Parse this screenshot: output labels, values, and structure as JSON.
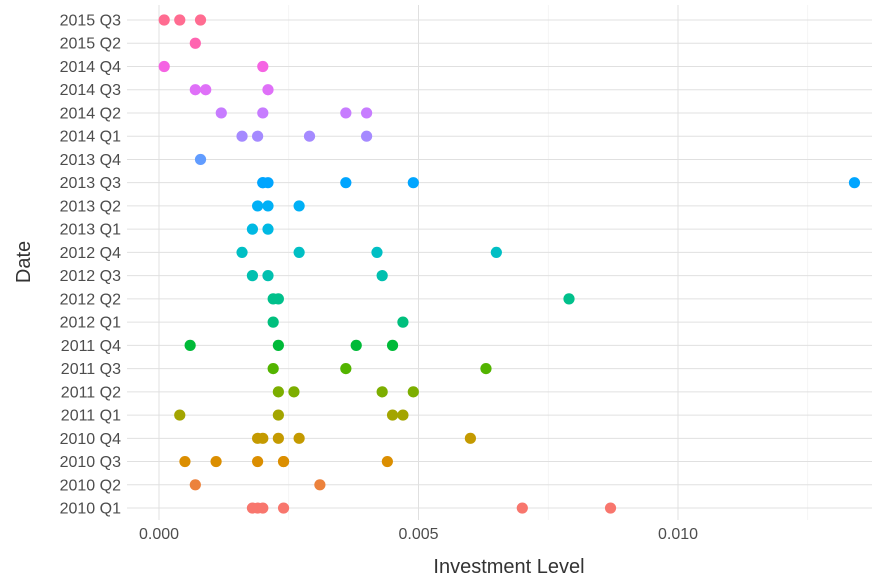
{
  "chart_data": {
    "type": "scatter",
    "title": "",
    "xlabel": "Investment Level",
    "ylabel": "Date",
    "xlim": [
      -0.0003,
      0.0138
    ],
    "x_ticks": [
      0,
      0.005,
      0.01
    ],
    "x_tick_labels": [
      "0.000",
      "0.005",
      "0.010"
    ],
    "grid": true,
    "legend": "none",
    "categories": [
      "2010 Q1",
      "2010 Q2",
      "2010 Q3",
      "2010 Q4",
      "2011 Q1",
      "2011 Q2",
      "2011 Q3",
      "2011 Q4",
      "2012 Q1",
      "2012 Q2",
      "2012 Q3",
      "2012 Q4",
      "2013 Q1",
      "2013 Q2",
      "2013 Q3",
      "2013 Q4",
      "2014 Q1",
      "2014 Q2",
      "2014 Q3",
      "2014 Q4",
      "2015 Q2",
      "2015 Q3"
    ],
    "colors": [
      "#F8766D",
      "#EC823C",
      "#DB8E00",
      "#C49A00",
      "#A3A500",
      "#7CAE00",
      "#53B400",
      "#00BA38",
      "#00BF7D",
      "#00C08B",
      "#00C0AF",
      "#00BFC4",
      "#00B9E3",
      "#00B0F6",
      "#00A5FF",
      "#619CFF",
      "#A58AFF",
      "#C77CFF",
      "#DF70F8",
      "#F564E3",
      "#FF64B0",
      "#FF6C91"
    ],
    "points": [
      {
        "category": "2010 Q1",
        "values": [
          0.0018,
          0.0019,
          0.002,
          0.0024,
          0.007,
          0.0087
        ]
      },
      {
        "category": "2010 Q2",
        "values": [
          0.0007,
          0.0031
        ]
      },
      {
        "category": "2010 Q3",
        "values": [
          0.0005,
          0.0011,
          0.0019,
          0.0024,
          0.0024,
          0.0044
        ]
      },
      {
        "category": "2010 Q4",
        "values": [
          0.0019,
          0.002,
          0.0023,
          0.0027,
          0.006
        ]
      },
      {
        "category": "2011 Q1",
        "values": [
          0.0004,
          0.0023,
          0.0045,
          0.0047
        ]
      },
      {
        "category": "2011 Q2",
        "values": [
          0.0023,
          0.0026,
          0.0043,
          0.0049
        ]
      },
      {
        "category": "2011 Q3",
        "values": [
          0.0022,
          0.0036,
          0.0063
        ]
      },
      {
        "category": "2011 Q4",
        "values": [
          0.0006,
          0.0023,
          0.0038,
          0.0045
        ]
      },
      {
        "category": "2012 Q1",
        "values": [
          0.0022,
          0.0047
        ]
      },
      {
        "category": "2012 Q2",
        "values": [
          0.0022,
          0.0023,
          0.0079
        ]
      },
      {
        "category": "2012 Q3",
        "values": [
          0.0018,
          0.0021,
          0.0043
        ]
      },
      {
        "category": "2012 Q4",
        "values": [
          0.0016,
          0.0027,
          0.0042,
          0.0065
        ]
      },
      {
        "category": "2013 Q1",
        "values": [
          0.0018,
          0.0021
        ]
      },
      {
        "category": "2013 Q2",
        "values": [
          0.0019,
          0.0021,
          0.0027
        ]
      },
      {
        "category": "2013 Q3",
        "values": [
          0.002,
          0.002,
          0.0021,
          0.0036,
          0.0049,
          0.0134
        ]
      },
      {
        "category": "2013 Q4",
        "values": [
          0.0008
        ]
      },
      {
        "category": "2014 Q1",
        "values": [
          0.0016,
          0.0019,
          0.0029,
          0.004
        ]
      },
      {
        "category": "2014 Q2",
        "values": [
          0.0012,
          0.002,
          0.0036,
          0.004
        ]
      },
      {
        "category": "2014 Q3",
        "values": [
          0.0007,
          0.0009,
          0.0021
        ]
      },
      {
        "category": "2014 Q4",
        "values": [
          0.0001,
          0.002
        ]
      },
      {
        "category": "2015 Q2",
        "values": [
          0.0007
        ]
      },
      {
        "category": "2015 Q3",
        "values": [
          0.0001,
          0.0004,
          0.0008
        ]
      }
    ]
  }
}
